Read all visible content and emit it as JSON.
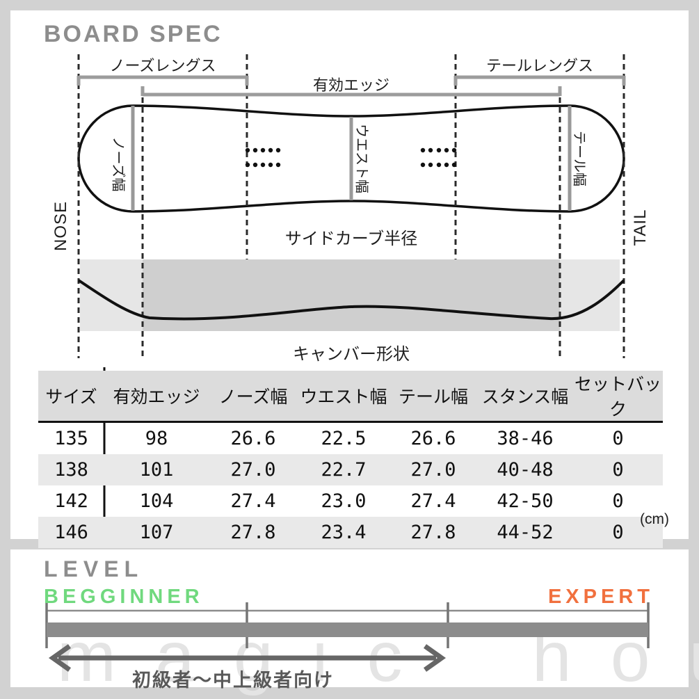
{
  "board_spec": {
    "title": "BOARD SPEC",
    "diagram": {
      "nose_length_label": "ノーズレングス",
      "effective_edge_label": "有効エッジ",
      "tail_length_label": "テールレングス",
      "nose_width_label": "ノーズ幅",
      "waist_width_label": "ウエスト幅",
      "tail_width_label": "テール幅",
      "nose_label": "NOSE",
      "tail_label": "TAIL",
      "sidecut_label": "サイドカーブ半径",
      "camber_label": "キャンバー形状"
    },
    "spec_table": {
      "headers": [
        "サイズ",
        "有効エッジ",
        "ノーズ幅",
        "ウエスト幅",
        "テール幅",
        "スタンス幅",
        "セットバック"
      ],
      "rows": [
        [
          "135",
          "98",
          "26.6",
          "22.5",
          "26.6",
          "38-46",
          "0"
        ],
        [
          "138",
          "101",
          "27.0",
          "22.7",
          "27.0",
          "40-48",
          "0"
        ],
        [
          "142",
          "104",
          "27.4",
          "23.0",
          "27.4",
          "42-50",
          "0"
        ],
        [
          "146",
          "107",
          "27.8",
          "23.4",
          "27.8",
          "44-52",
          "0"
        ]
      ],
      "unit": "(cm)"
    }
  },
  "level": {
    "title": "LEVEL",
    "beginner_label": "BEGGINNER",
    "expert_label": "EXPERT",
    "beginner_color": "#70d97e",
    "expert_color": "#f1703e",
    "caption": "初級者〜中上級者向け",
    "scale_segments": 3,
    "range_covered_fraction": 0.66
  },
  "watermark": "magic hour"
}
